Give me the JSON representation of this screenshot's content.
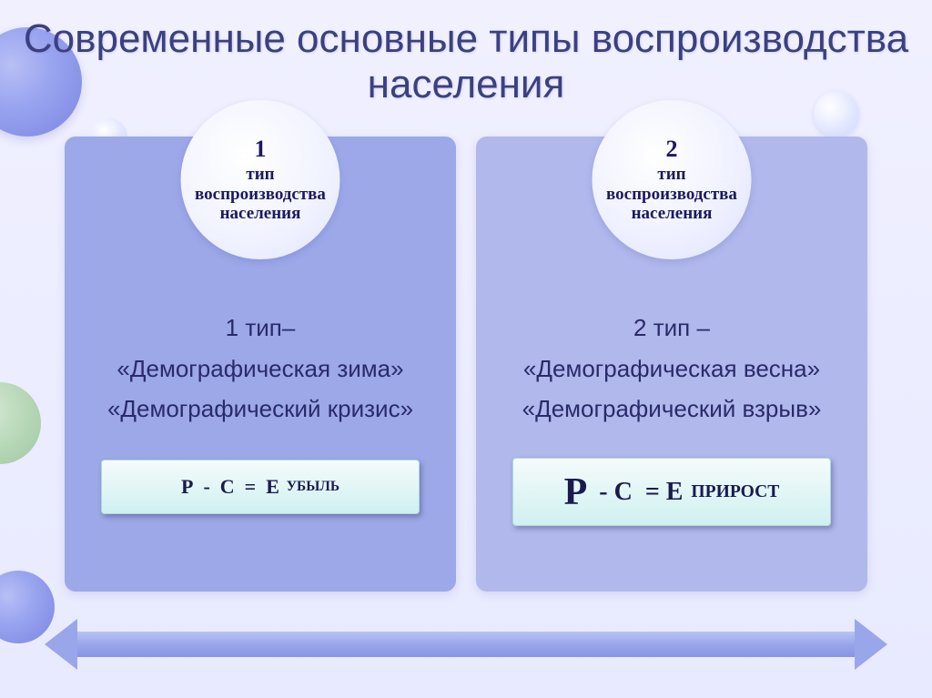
{
  "title": "Современные основные типы воспроизводства населения",
  "colors": {
    "bg_top": "#f0f0ff",
    "bg_bottom": "#e8eaff",
    "title_color": "#3b4080",
    "card1_bg": "#9ca8e8",
    "card2_bg": "#b0b8ec",
    "badge_text": "#1a1a60",
    "body_text": "#2a2a6a",
    "formula_bg_top": "#f5fbfb",
    "formula_bg_bottom": "#d0f0f0",
    "arrow_color": "#9aa6ea"
  },
  "typography": {
    "title_fontsize": 44,
    "body_fontsize": 26,
    "badge_num_fontsize": 26,
    "badge_text_fontsize": 19
  },
  "cards": [
    {
      "num": "1",
      "badge": "тип воспроизводства населения",
      "line1": "1 тип–",
      "line2": "«Демографическая зима»",
      "line3": "«Демографический кризис»",
      "formula": {
        "p": "Р",
        "minus": "-",
        "c": "С",
        "eq": "=",
        "e": "Е",
        "suffix": "убыль"
      }
    },
    {
      "num": "2",
      "badge": "тип воспроизводства населения",
      "line1": "2 тип  –",
      "line2": "«Демографическая весна»",
      "line3": "«Демографический взрыв»",
      "formula": {
        "p": "Р",
        "minus": "-",
        "c": "С",
        "eq": "=",
        "e": "Е",
        "suffix": "прирост"
      }
    }
  ]
}
